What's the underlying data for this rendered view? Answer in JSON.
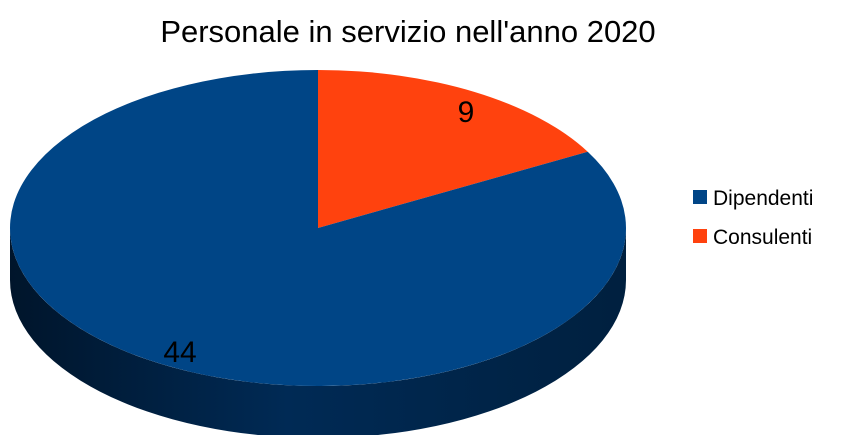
{
  "chart_data": {
    "type": "pie",
    "title": "Personale in servizio nell'anno 2020",
    "categories": [
      "Dipendenti",
      "Consulenti"
    ],
    "values": [
      44,
      9
    ],
    "data_labels": [
      "44",
      "9"
    ],
    "colors": [
      "#004586",
      "#FF420E"
    ],
    "side_colors": [
      "#002a55",
      "#a82a08"
    ],
    "legend": {
      "placement": "right",
      "entries": [
        "Dipendenti",
        "Consulenti"
      ]
    },
    "style": "3d"
  }
}
